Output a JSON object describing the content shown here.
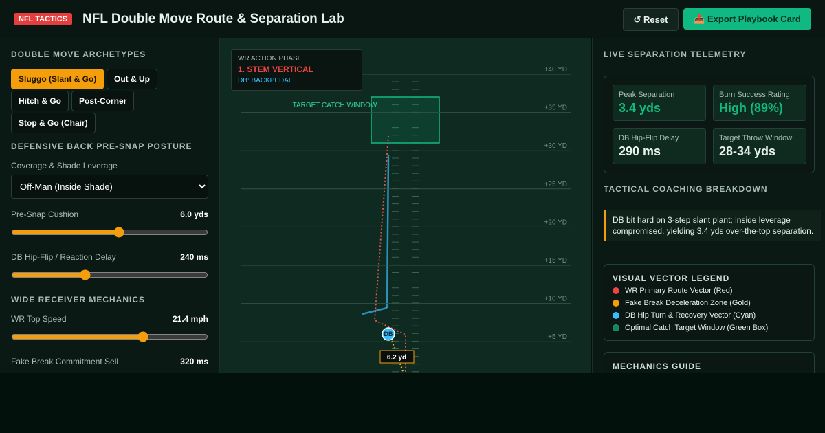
{
  "header": {
    "badge": "NFL TACTICS",
    "title": "NFL Double Move Route & Separation Lab",
    "buttons": [
      "↺ Reset",
      "📥 Export Playbook Card"
    ]
  },
  "left": {
    "archetypes_title": "DOUBLE MOVE ARCHETYPES",
    "archetypes": [
      "Sluggo (Slant & Go)",
      "Out & Up",
      "Hitch & Go",
      "Post-Corner",
      "Stop & Go (Chair)"
    ],
    "db_title": "DEFENSIVE BACK PRE-SNAP POSTURE",
    "coverage_label": "Coverage & Shade Leverage",
    "coverage_value": "Off-Man (Inside Shade)",
    "cushion_label": "Pre-Snap Cushion",
    "cushion_value": "6.0 yds",
    "delay_label": "DB Hip-Flip / Reaction Delay",
    "delay_value": "240 ms",
    "wr_title": "WIDE RECEIVER MECHANICS",
    "speed_label": "WR Top Speed",
    "speed_value": "21.4 mph",
    "sell_label": "Fake Break Commitment Sell",
    "sell_value": "320 ms"
  },
  "field": {
    "phase_label": "WR ACTION PHASE",
    "phase": "1. STEM VERTICAL",
    "db_state": "DB: BACKPEDAL",
    "catch_window": "TARGET CATCH WINDOW",
    "yard_lines": [
      "+40 YD",
      "+35 YD",
      "+30 YD",
      "+25 YD",
      "+20 YD",
      "+15 YD",
      "+10 YD",
      "+5 YD"
    ],
    "db_marker": "DB",
    "distance": "6.2 yd"
  },
  "right": {
    "telemetry_title": "LIVE SEPARATION TELEMETRY",
    "stats": [
      {
        "label": "Peak Separation",
        "value": "3.4 yds"
      },
      {
        "label": "Burn Success Rating",
        "value": "High (89%)"
      },
      {
        "label": "DB Hip-Flip Delay",
        "value": "290 ms"
      },
      {
        "label": "Target Throw Window",
        "value": "28-34 yds"
      }
    ],
    "coaching_title": "TACTICAL COACHING BREAKDOWN",
    "coaching_text": "DB bit hard on 3-step slant plant; inside leverage compromised, yielding 3.4 yds over-the-top separation.",
    "legend_title": "VISUAL VECTOR LEGEND",
    "legend": [
      "WR Primary Route Vector (Red)",
      "Fake Break Deceleration Zone (Gold)",
      "DB Hip Turn & Recovery Vector (Cyan)",
      "Optimal Catch Target Window (Green Box)"
    ],
    "guide_title": "MECHANICS GUIDE"
  }
}
